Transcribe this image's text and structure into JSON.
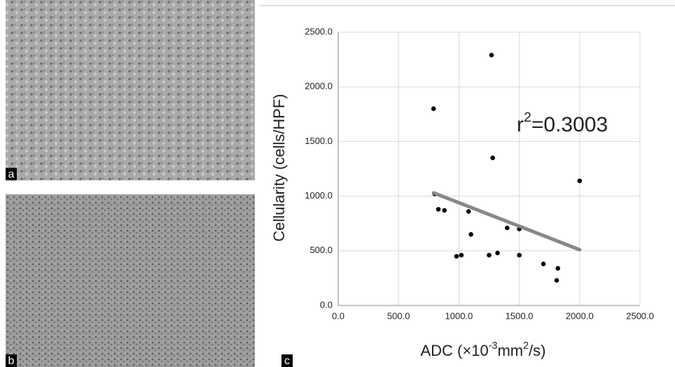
{
  "panels": {
    "a": "a",
    "b": "b",
    "c": "c"
  },
  "chart_data": {
    "type": "scatter",
    "xlabel": [
      "ADC (×10",
      "-3",
      "mm",
      "2",
      "/s)"
    ],
    "ylabel": "Cellularity (cells/HPF)",
    "annotation": [
      "r",
      "2",
      "=0.3003"
    ],
    "x": [
      790,
      1270,
      1280,
      2000,
      800,
      830,
      880,
      1080,
      1100,
      1400,
      1500,
      980,
      1020,
      1250,
      1320,
      1500,
      1700,
      1820,
      1810
    ],
    "values": [
      1800,
      2290,
      1350,
      1140,
      1020,
      880,
      870,
      860,
      650,
      710,
      700,
      450,
      460,
      460,
      480,
      460,
      380,
      340,
      230
    ],
    "color": "#000000",
    "trendline": {
      "x": [
        790,
        2000
      ],
      "y": [
        1030,
        510
      ],
      "color": "#888888"
    },
    "xlim": [
      0,
      2500
    ],
    "ylim": [
      0,
      2500
    ],
    "xticks": [
      {
        "value": 0,
        "label": "0.0"
      },
      {
        "value": 500,
        "label": "500.0"
      },
      {
        "value": 1000,
        "label": "1000.0"
      },
      {
        "value": 1500,
        "label": "1500.0"
      },
      {
        "value": 2000,
        "label": "2000.0"
      },
      {
        "value": 2500,
        "label": "2500.0"
      }
    ],
    "yticks": [
      {
        "value": 0,
        "label": "0.0"
      },
      {
        "value": 500,
        "label": "500.0"
      },
      {
        "value": 1000,
        "label": "1000.0"
      },
      {
        "value": 1500,
        "label": "1500.0"
      },
      {
        "value": 2000,
        "label": "2000.0"
      },
      {
        "value": 2500,
        "label": "2500.0"
      }
    ],
    "grid": true
  }
}
